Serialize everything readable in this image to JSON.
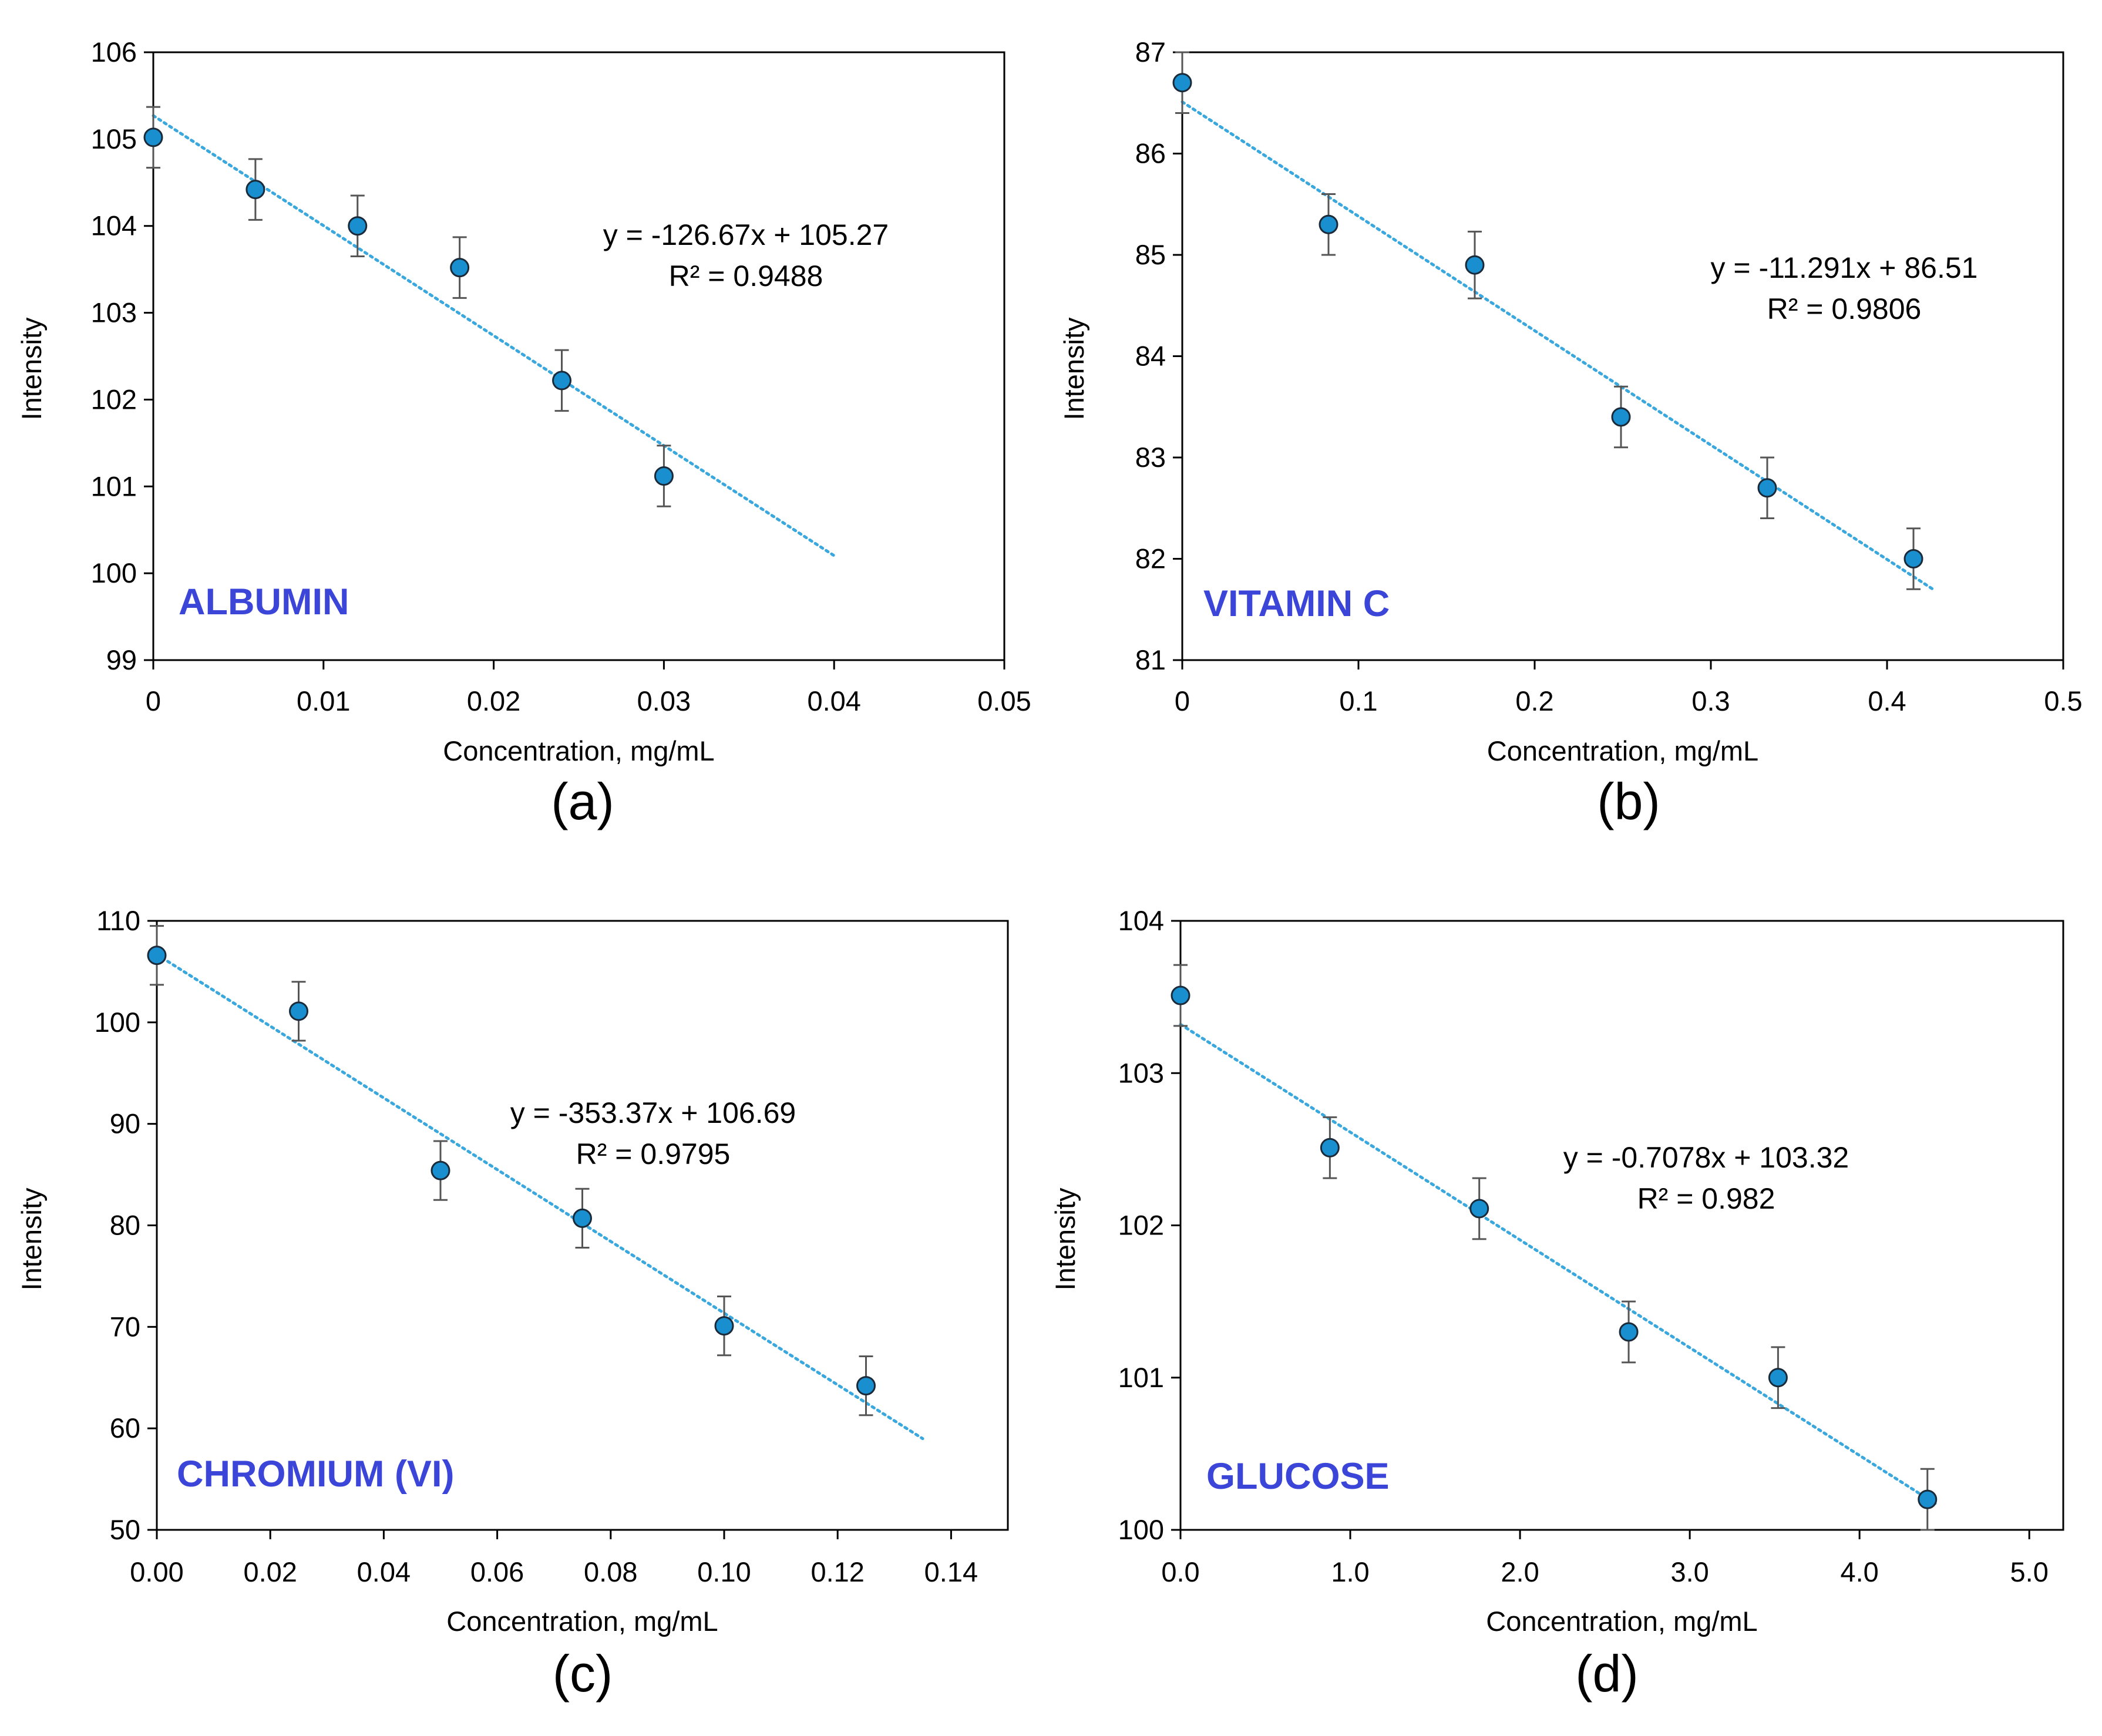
{
  "colors": {
    "point": "#1a8fcf",
    "trend": "#3aa8dd",
    "label": "#3b45d8",
    "errbar": "#555555",
    "frame": "#000000"
  },
  "chart_data": [
    {
      "type": "scatter",
      "label": "ALBUMIN",
      "caption": "(a)",
      "xlabel": "Concentration, mg/mL",
      "ylabel": "Intensity",
      "xlim": [
        0,
        0.05
      ],
      "ylim": [
        99,
        106
      ],
      "xticks": [
        0,
        0.01,
        0.02,
        0.03,
        0.04,
        0.05
      ],
      "xtick_labels": [
        "0",
        "0.01",
        "0.02",
        "0.03",
        "0.04",
        "0.05"
      ],
      "yticks": [
        99,
        100,
        101,
        102,
        103,
        104,
        105,
        106
      ],
      "ytick_labels": [
        "99",
        "100",
        "101",
        "102",
        "103",
        "104",
        "105",
        "106"
      ],
      "x": [
        0,
        0.006,
        0.012,
        0.018,
        0.024,
        0.03
      ],
      "y": [
        105.02,
        104.42,
        104.0,
        103.52,
        102.22,
        101.12
      ],
      "error": [
        0.35,
        0.35,
        0.35,
        0.35,
        0.35,
        0.35
      ],
      "trendline": {
        "slope": -126.67,
        "intercept": 105.27,
        "x_range": [
          0,
          0.04
        ]
      },
      "equation": "y = -126.67x + 105.27",
      "r2": "R² = 0.9488"
    },
    {
      "type": "scatter",
      "label": "VITAMIN C",
      "caption": "(b)",
      "xlabel": "Concentration, mg/mL",
      "ylabel": "Intensity",
      "xlim": [
        0,
        0.5
      ],
      "ylim": [
        81,
        87
      ],
      "xticks": [
        0,
        0.1,
        0.2,
        0.3,
        0.4,
        0.5
      ],
      "xtick_labels": [
        "0",
        "0.1",
        "0.2",
        "0.3",
        "0.4",
        "0.5"
      ],
      "yticks": [
        81,
        82,
        83,
        84,
        85,
        86,
        87
      ],
      "ytick_labels": [
        "81",
        "82",
        "83",
        "84",
        "85",
        "86",
        "87"
      ],
      "x": [
        0,
        0.083,
        0.166,
        0.249,
        0.332,
        0.415
      ],
      "y": [
        86.7,
        85.3,
        84.9,
        83.4,
        82.7,
        82.0
      ],
      "error": [
        0.3,
        0.3,
        0.33,
        0.3,
        0.3,
        0.3
      ],
      "trendline": {
        "slope": -11.291,
        "intercept": 86.51,
        "x_range": [
          0,
          0.427
        ]
      },
      "equation": "y = -11.291x + 86.51",
      "r2": "R² = 0.9806"
    },
    {
      "type": "scatter",
      "label": "CHROMIUM (VI)",
      "caption": "(c)",
      "xlabel": "Concentration, mg/mL",
      "ylabel": "Intensity",
      "xlim": [
        0,
        0.15
      ],
      "ylim": [
        50,
        110
      ],
      "xticks": [
        0,
        0.02,
        0.04,
        0.06,
        0.08,
        0.1,
        0.12,
        0.14
      ],
      "xtick_labels": [
        "0.00",
        "0.02",
        "0.04",
        "0.06",
        "0.08",
        "0.10",
        "0.12",
        "0.14"
      ],
      "yticks": [
        50,
        60,
        70,
        80,
        90,
        100,
        110
      ],
      "ytick_labels": [
        "50",
        "60",
        "70",
        "80",
        "90",
        "100",
        "110"
      ],
      "x": [
        0,
        0.025,
        0.05,
        0.075,
        0.1,
        0.125
      ],
      "y": [
        106.6,
        101.1,
        85.4,
        80.7,
        70.1,
        64.2
      ],
      "error": [
        2.9,
        2.9,
        2.9,
        2.9,
        2.9,
        2.9
      ],
      "trendline": {
        "slope": -353.37,
        "intercept": 106.69,
        "x_range": [
          0,
          0.135
        ]
      },
      "equation": "y = -353.37x + 106.69",
      "r2": "R² = 0.9795"
    },
    {
      "type": "scatter",
      "label": "GLUCOSE",
      "caption": "(d)",
      "xlabel": "Concentration, mg/mL",
      "ylabel": "Intensity",
      "xlim": [
        0,
        5.2
      ],
      "ylim": [
        100,
        104
      ],
      "xticks": [
        0,
        1,
        2,
        3,
        4,
        5
      ],
      "xtick_labels": [
        "0.0",
        "1.0",
        "2.0",
        "3.0",
        "4.0",
        "5.0"
      ],
      "yticks": [
        100,
        101,
        102,
        103,
        104
      ],
      "ytick_labels": [
        "100",
        "101",
        "102",
        "103",
        "104"
      ],
      "x": [
        0,
        0.88,
        1.76,
        2.64,
        3.52,
        4.4
      ],
      "y": [
        103.51,
        102.51,
        102.11,
        101.3,
        101.0,
        100.2
      ],
      "error": [
        0.2,
        0.2,
        0.2,
        0.2,
        0.2,
        0.2
      ],
      "trendline": {
        "slope": -0.7078,
        "intercept": 103.32,
        "x_range": [
          0,
          4.45
        ]
      },
      "equation": "y = -0.7078x + 103.32",
      "r2": "R² = 0.982"
    }
  ]
}
